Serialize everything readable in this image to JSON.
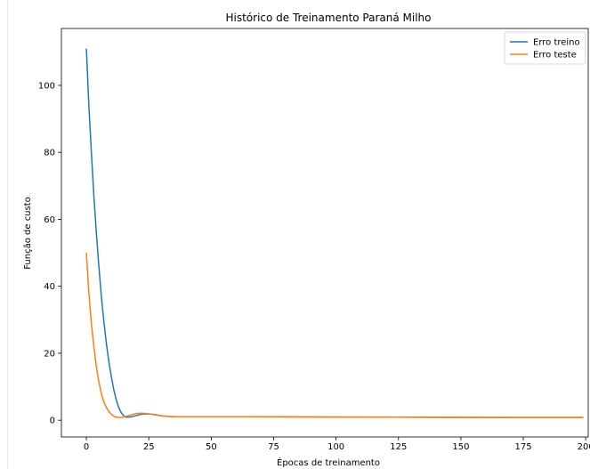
{
  "chart_data": {
    "type": "line",
    "title": "Histórico de Treinamento Paraná Milho",
    "xlabel": "Épocas de treinamento",
    "ylabel": "Função de custo",
    "xlim": [
      -10,
      201
    ],
    "ylim": [
      -5,
      117
    ],
    "xticks": [
      0,
      25,
      50,
      75,
      100,
      125,
      150,
      175,
      200
    ],
    "yticks": [
      0,
      20,
      40,
      60,
      80,
      100
    ],
    "grid": false,
    "legend_position": "top-right",
    "series": [
      {
        "name": "Erro treino",
        "color": "#1f77b4",
        "x": [
          0,
          1,
          2,
          3,
          4,
          5,
          6,
          7,
          8,
          9,
          10,
          11,
          12,
          13,
          14,
          15,
          16,
          18,
          20,
          22,
          24,
          26,
          28,
          30,
          33,
          36,
          40,
          50,
          60,
          75,
          100,
          125,
          150,
          175,
          199
        ],
        "y": [
          111,
          94,
          80,
          67,
          56,
          46,
          37,
          29.5,
          23,
          17.5,
          13,
          9,
          6,
          3.7,
          2.2,
          1.3,
          0.9,
          1.0,
          1.4,
          1.8,
          1.9,
          1.8,
          1.6,
          1.3,
          1.1,
          1.05,
          1.05,
          1.05,
          1.05,
          1.0,
          0.95,
          0.9,
          0.85,
          0.8,
          0.8
        ]
      },
      {
        "name": "Erro teste",
        "color": "#ff7f0e",
        "x": [
          0,
          1,
          2,
          3,
          4,
          5,
          6,
          7,
          8,
          9,
          10,
          11,
          12,
          13,
          14,
          16,
          18,
          20,
          22,
          24,
          26,
          28,
          30,
          33,
          36,
          40,
          50,
          60,
          75,
          100,
          125,
          150,
          175,
          199
        ],
        "y": [
          50,
          38,
          29,
          22,
          16,
          11.5,
          8,
          5.5,
          3.8,
          2.6,
          1.8,
          1.2,
          0.9,
          0.8,
          0.8,
          1.2,
          1.6,
          2.0,
          2.1,
          2.0,
          1.8,
          1.5,
          1.3,
          1.1,
          1.05,
          1.05,
          1.05,
          1.05,
          1.0,
          0.95,
          0.9,
          0.85,
          0.8,
          0.8
        ]
      }
    ]
  }
}
